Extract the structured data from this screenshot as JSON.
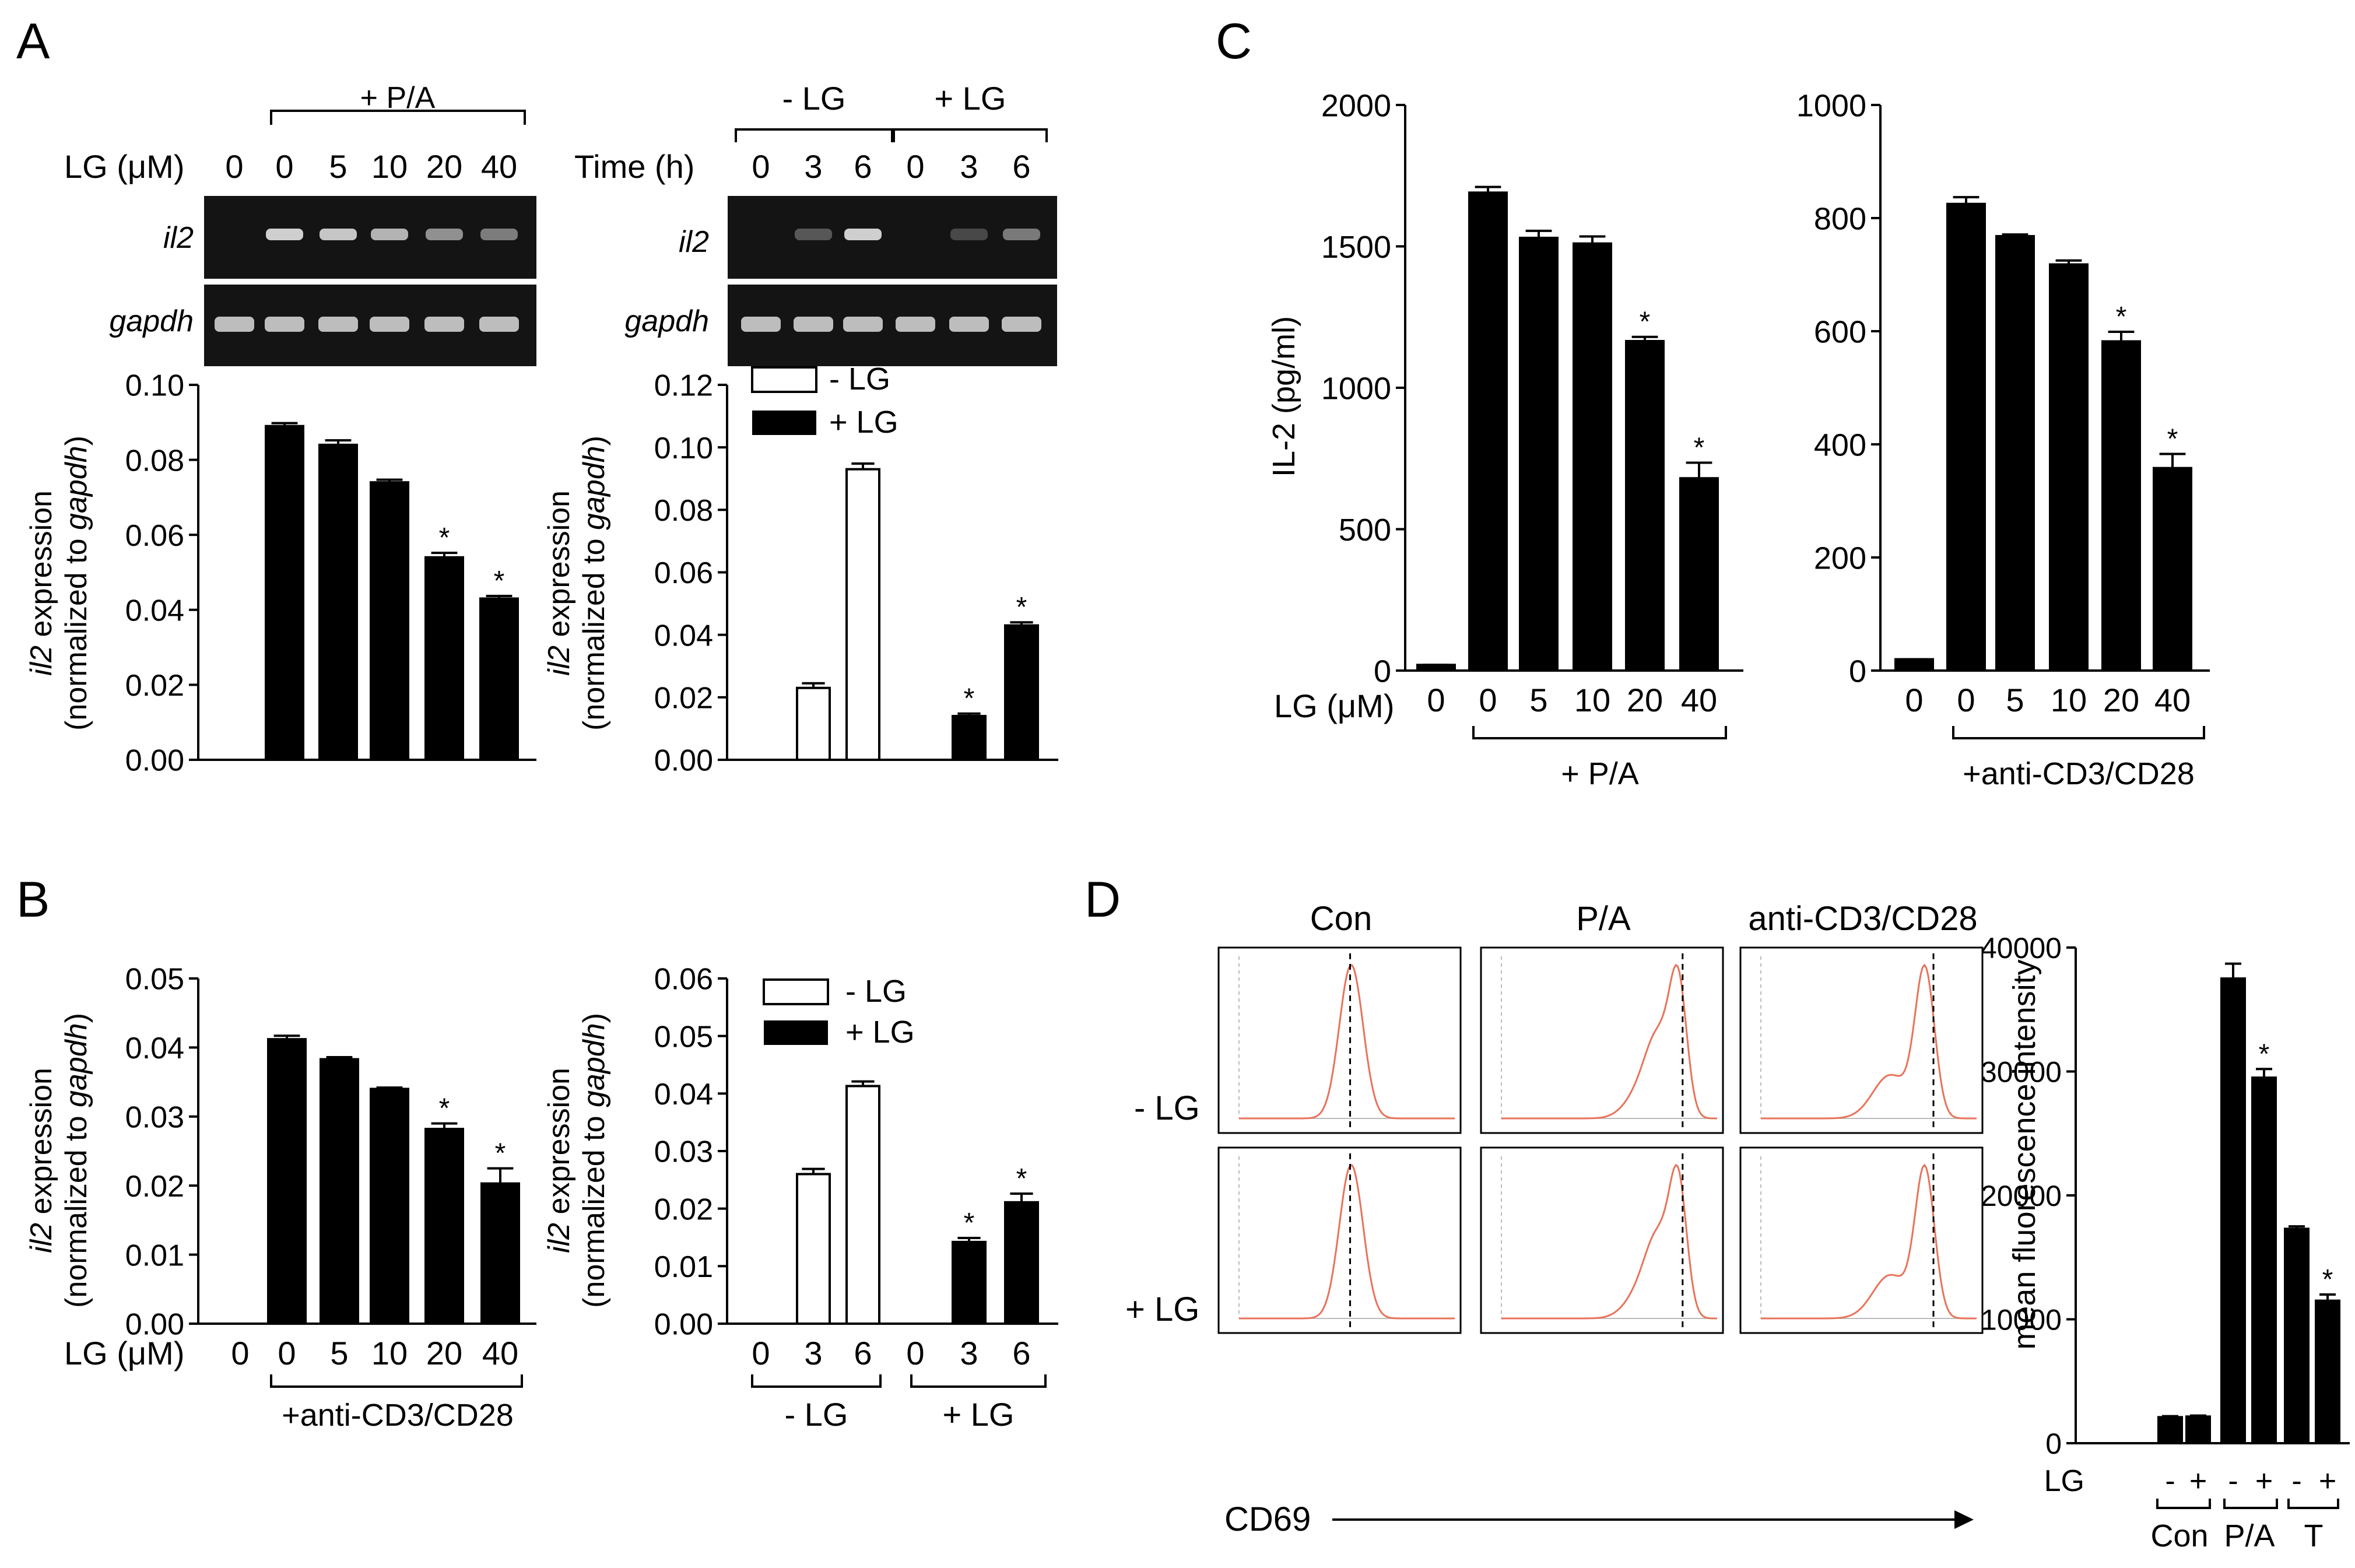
{
  "panel_labels": {
    "a": "A",
    "b": "B",
    "c": "C",
    "d": "D"
  },
  "labels": {
    "lg_um": "LG (μM)",
    "time_h": "Time (h)",
    "pa": "+ P/A",
    "anticd": "+anti-CD3/CD28",
    "minus_lg": "- LG",
    "plus_lg": "+ LG",
    "il2_gene": "il2",
    "gapdh_gene": "gapdh",
    "il2_expr": "il2",
    "expr_word": " expression",
    "normalized": "(normalized to ",
    "gapdh_it": "gapdh",
    "close_paren": ")",
    "il2_pg": "IL-2 (pg/ml)",
    "mfi": "mean fluorescence intensity",
    "cd69": "CD69",
    "con": "Con",
    "pa_short": "P/A",
    "anticd_short": "anti-CD3/CD28",
    "t_short": "T",
    "lg": "LG",
    "star": "*"
  },
  "dose_ticks": [
    "0",
    "0",
    "5",
    "10",
    "20",
    "40"
  ],
  "time_ticks": [
    "0",
    "3",
    "6",
    "0",
    "3",
    "6"
  ],
  "lg_signs": [
    "-",
    "+",
    "-",
    "+",
    "-",
    "+"
  ],
  "colors": {
    "bar": "#000000",
    "hist": "#e8735a",
    "gel_bg": "#141414",
    "band": "#cfcfcf"
  },
  "chart_data": [
    {
      "id": "A1",
      "type": "bar",
      "title": "",
      "categories": [
        "0",
        "0",
        "5",
        "10",
        "20",
        "40"
      ],
      "values": [
        0,
        0.089,
        0.084,
        0.074,
        0.054,
        0.043
      ],
      "errors": [
        0,
        0.0008,
        0.0012,
        0.0007,
        0.0012,
        0.0007
      ],
      "significant": [
        false,
        false,
        false,
        false,
        true,
        true
      ],
      "ylim": [
        0,
        0.1
      ],
      "yticks": [
        "0.00",
        "0.02",
        "0.04",
        "0.06",
        "0.08",
        "0.10"
      ],
      "ylabel": "il2 expression (normalized to gapdh)",
      "xlabel": "LG (μM)"
    },
    {
      "id": "A2",
      "type": "bar",
      "title": "",
      "categories": [
        "0",
        "3",
        "6",
        "0",
        "3",
        "6"
      ],
      "series": [
        {
          "name": "- LG",
          "values": [
            0,
            0.023,
            0.093,
            null,
            null,
            null
          ]
        },
        {
          "name": "+ LG",
          "values": [
            null,
            null,
            null,
            0,
            0.014,
            0.043
          ]
        }
      ],
      "values": [
        0,
        0.023,
        0.093,
        0,
        0.014,
        0.043
      ],
      "errors": [
        0,
        0.0015,
        0.0018,
        0,
        0.0008,
        0.001
      ],
      "significant": [
        false,
        false,
        false,
        false,
        true,
        true
      ],
      "ylim": [
        0,
        0.12
      ],
      "yticks": [
        "0.00",
        "0.02",
        "0.04",
        "0.06",
        "0.08",
        "0.10",
        "0.12"
      ],
      "ylabel": "il2 expression (normalized to gapdh)",
      "xlabel": "Time (h)"
    },
    {
      "id": "B1",
      "type": "bar",
      "title": "",
      "categories": [
        "0",
        "0",
        "5",
        "10",
        "20",
        "40"
      ],
      "values": [
        0,
        0.0412,
        0.0383,
        0.034,
        0.0282,
        0.0203
      ],
      "errors": [
        0,
        0.0005,
        0.0003,
        0.0002,
        0.0008,
        0.0022
      ],
      "significant": [
        false,
        false,
        false,
        false,
        true,
        true
      ],
      "ylim": [
        0,
        0.05
      ],
      "yticks": [
        "0.00",
        "0.01",
        "0.02",
        "0.03",
        "0.04",
        "0.05"
      ],
      "ylabel": "il2 expression (normalized to gapdh)",
      "xlabel": "LG (μM)"
    },
    {
      "id": "B2",
      "type": "bar",
      "title": "",
      "categories": [
        "0",
        "3",
        "6",
        "0",
        "3",
        "6"
      ],
      "series": [
        {
          "name": "- LG",
          "values": [
            0,
            0.026,
            0.0413,
            null,
            null,
            null
          ]
        },
        {
          "name": "+ LG",
          "values": [
            null,
            null,
            null,
            0,
            0.0142,
            0.0211
          ]
        }
      ],
      "values": [
        0,
        0.026,
        0.0413,
        0,
        0.0142,
        0.0211
      ],
      "errors": [
        0,
        0.0009,
        0.0008,
        0,
        0.0007,
        0.0015
      ],
      "significant": [
        false,
        false,
        false,
        false,
        true,
        true
      ],
      "ylim": [
        0,
        0.06
      ],
      "yticks": [
        "0.00",
        "0.01",
        "0.02",
        "0.03",
        "0.04",
        "0.05",
        "0.06"
      ],
      "ylabel": "il2 expression (normalized to gapdh)",
      "xlabel": "Time (h)"
    },
    {
      "id": "C1",
      "type": "bar",
      "title": "",
      "categories": [
        "0",
        "0",
        "5",
        "10",
        "20",
        "40"
      ],
      "values": [
        20,
        1690,
        1530,
        1510,
        1165,
        680
      ],
      "errors": [
        0,
        20,
        25,
        25,
        15,
        55
      ],
      "significant": [
        false,
        false,
        false,
        false,
        true,
        true
      ],
      "ylim": [
        0,
        2000
      ],
      "yticks": [
        "0",
        "500",
        "1000",
        "1500",
        "2000"
      ],
      "ylabel": "IL-2 (pg/ml)",
      "xlabel": "LG (μM)"
    },
    {
      "id": "C2",
      "type": "bar",
      "title": "",
      "categories": [
        "0",
        "0",
        "5",
        "10",
        "20",
        "40"
      ],
      "values": [
        20,
        825,
        768,
        718,
        582,
        358
      ],
      "errors": [
        0,
        12,
        3,
        7,
        17,
        25
      ],
      "significant": [
        false,
        false,
        false,
        false,
        true,
        true
      ],
      "ylim": [
        0,
        1000
      ],
      "yticks": [
        "0",
        "200",
        "400",
        "600",
        "800",
        "1000"
      ],
      "ylabel": "",
      "xlabel": ""
    },
    {
      "id": "D",
      "type": "bar",
      "title": "",
      "categories": [
        "Con -",
        "Con +",
        "P/A -",
        "P/A +",
        "T -",
        "T +"
      ],
      "values": [
        2100,
        2150,
        37500,
        29500,
        17300,
        11500
      ],
      "errors": [
        80,
        80,
        1200,
        700,
        200,
        500
      ],
      "significant": [
        false,
        false,
        false,
        true,
        false,
        true
      ],
      "ylim": [
        0,
        40000
      ],
      "yticks": [
        "0",
        "10000",
        "20000",
        "30000",
        "40000"
      ],
      "ylabel": "mean fluorescence intensity",
      "xlabel": "LG"
    }
  ]
}
